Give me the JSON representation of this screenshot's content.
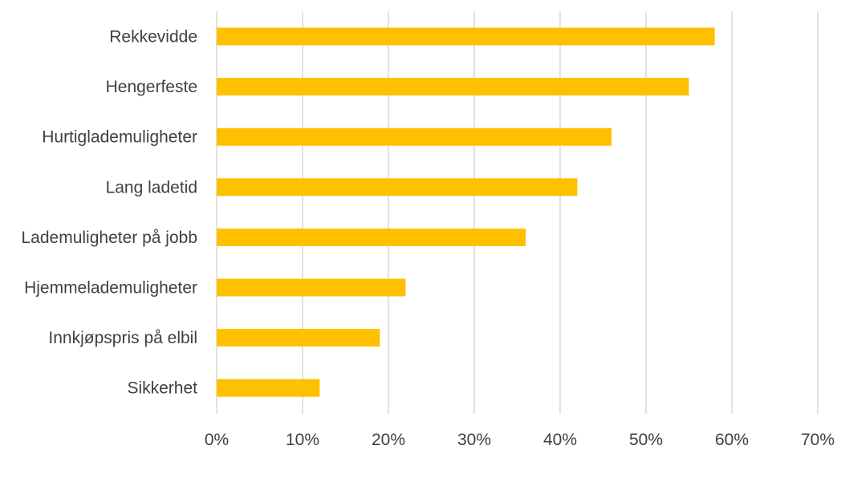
{
  "chart_data": {
    "type": "bar",
    "orientation": "horizontal",
    "categories": [
      "Rekkevidde",
      "Hengerfeste",
      "Hurtiglademuligheter",
      "Lang ladetid",
      "Lademuligheter på jobb",
      "Hjemmelademuligheter",
      "Innkjøpspris på elbil",
      "Sikkerhet"
    ],
    "values": [
      0.58,
      0.55,
      0.46,
      0.42,
      0.36,
      0.22,
      0.19,
      0.12
    ],
    "xlim": [
      0,
      0.7
    ],
    "x_ticks": [
      "0%",
      "10%",
      "20%",
      "30%",
      "40%",
      "50%",
      "60%",
      "70%"
    ],
    "grid": "vertical",
    "legend": "none",
    "title": "",
    "xlabel": "",
    "ylabel": "",
    "bar_color": "#FFC000",
    "grid_color": "#D9D9D9",
    "text_color": "#404040"
  }
}
